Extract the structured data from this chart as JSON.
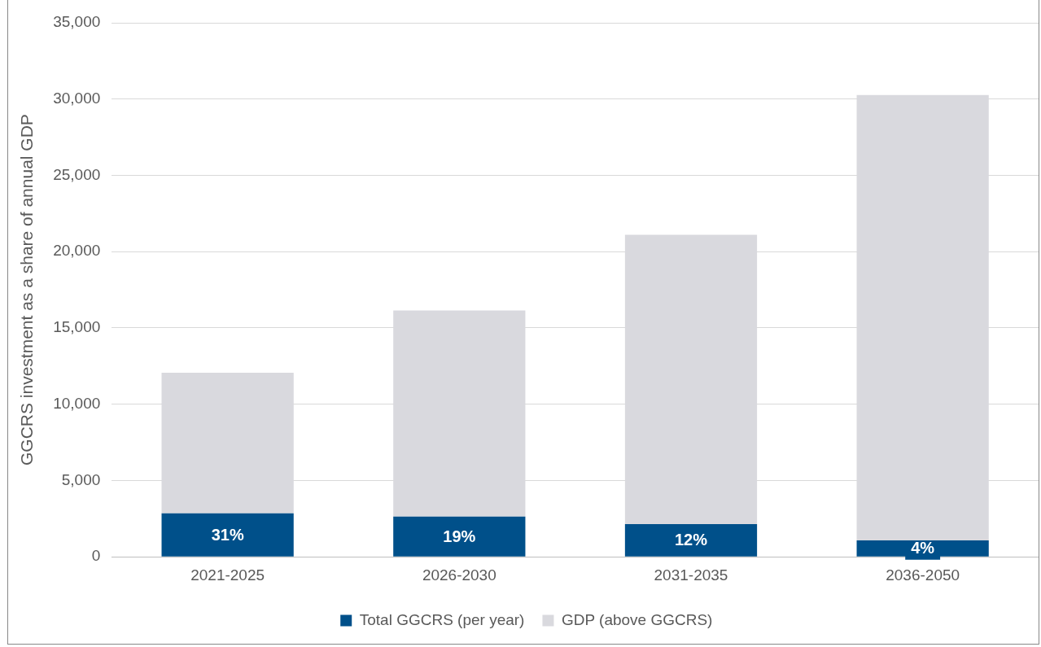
{
  "chart_data": {
    "type": "bar",
    "stacked": true,
    "ylabel": "GGCRS investment as a share of annual GDP",
    "categories": [
      "2021-2025",
      "2026-2030",
      "2031-2035",
      "2036-2050"
    ],
    "series": [
      {
        "name": "Total GGCRS (per year)",
        "color": "#00508a",
        "values": [
          2850,
          2640,
          2150,
          1080
        ]
      },
      {
        "name": "GDP (above GGCRS)",
        "color": "#d9d9de",
        "values": [
          9210,
          13510,
          18950,
          29180
        ]
      }
    ],
    "ylim": [
      0,
      35000
    ],
    "yticks": [
      {
        "value": 0,
        "label": "0"
      },
      {
        "value": 5000,
        "label": "5,000"
      },
      {
        "value": 10000,
        "label": "10,000"
      },
      {
        "value": 15000,
        "label": "15,000"
      },
      {
        "value": 20000,
        "label": "20,000"
      },
      {
        "value": 25000,
        "label": "25,000"
      },
      {
        "value": 30000,
        "label": "30,000"
      },
      {
        "value": 35000,
        "label": "35,000"
      }
    ],
    "grid": "y",
    "legend": "bottom",
    "annotations": [
      "31%",
      "19%",
      "12%",
      "4%"
    ]
  }
}
